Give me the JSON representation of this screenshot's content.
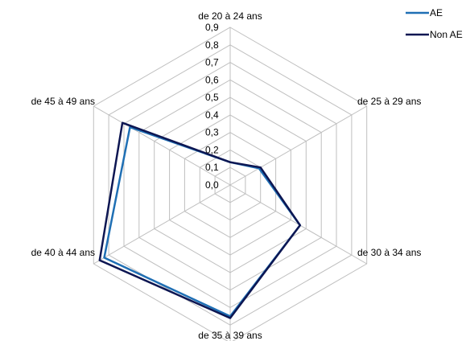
{
  "chart_data": {
    "type": "radar",
    "categories": [
      "de  20 à  24 ans",
      "de  25 à  29 ans",
      "de  30 à  34 ans",
      "de  35 à  39 ans",
      "de  40 à  44 ans",
      "de  45 à  49 ans"
    ],
    "rlim": [
      0,
      0.9
    ],
    "ticks": [
      0.0,
      0.1,
      0.2,
      0.3,
      0.4,
      0.5,
      0.6,
      0.7,
      0.8,
      0.9
    ],
    "tick_labels": [
      "0,0",
      "0,1",
      "0,2",
      "0,3",
      "0,4",
      "0,5",
      "0,6",
      "0,7",
      "0,8",
      "0,9"
    ],
    "grid": true,
    "legend_position": "top-right",
    "series": [
      {
        "name": "AE",
        "color": "#1f6fb4",
        "values": [
          0.13,
          0.19,
          0.46,
          0.75,
          0.83,
          0.66
        ]
      },
      {
        "name": "Non AE",
        "color": "#0d1652",
        "values": [
          0.13,
          0.2,
          0.46,
          0.76,
          0.86,
          0.71
        ]
      }
    ]
  }
}
